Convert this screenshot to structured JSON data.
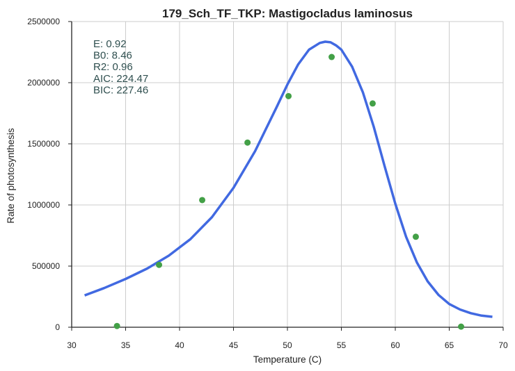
{
  "chart_data": {
    "type": "scatter",
    "title": "179_Sch_TF_TKP: Mastigocladus laminosus",
    "xlabel": "Temperature (C)",
    "ylabel": "Rate of photosynthesis",
    "xlim": [
      30,
      70
    ],
    "ylim": [
      0,
      2500000
    ],
    "x_ticks": [
      "30",
      "35",
      "40",
      "45",
      "50",
      "55",
      "60",
      "65",
      "70"
    ],
    "y_ticks": [
      "0",
      "500000",
      "1000000",
      "1500000",
      "2000000",
      "2500000"
    ],
    "grid": true,
    "stats": [
      {
        "label": "E:",
        "value": "0.92"
      },
      {
        "label": "B0:",
        "value": "8.46"
      },
      {
        "label": "R2:",
        "value": "0.96"
      },
      {
        "label": "AIC:",
        "value": "224.47"
      },
      {
        "label": "BIC:",
        "value": "227.46"
      }
    ],
    "points": {
      "color": "#43a047",
      "x": [
        34.2,
        38.1,
        42.1,
        46.3,
        50.1,
        54.1,
        57.9,
        61.9,
        66.1
      ],
      "y": [
        10000,
        510000,
        1040000,
        1510000,
        1890000,
        2210000,
        1830000,
        740000,
        5000
      ]
    },
    "fit": {
      "color": "#4169e1",
      "x": [
        31.2,
        33,
        35,
        37,
        39,
        41,
        43,
        45,
        47,
        48,
        49,
        50,
        51,
        52,
        53,
        53.5,
        54,
        54.5,
        55,
        56,
        57,
        58,
        59,
        60,
        61,
        62,
        63,
        64,
        65,
        66,
        67,
        68,
        69
      ],
      "y": [
        260000,
        320000,
        395000,
        480000,
        585000,
        720000,
        900000,
        1140000,
        1440000,
        1620000,
        1800000,
        1985000,
        2150000,
        2270000,
        2325000,
        2335000,
        2330000,
        2305000,
        2270000,
        2130000,
        1920000,
        1640000,
        1320000,
        1010000,
        740000,
        530000,
        375000,
        265000,
        190000,
        145000,
        115000,
        95000,
        85000
      ]
    }
  }
}
